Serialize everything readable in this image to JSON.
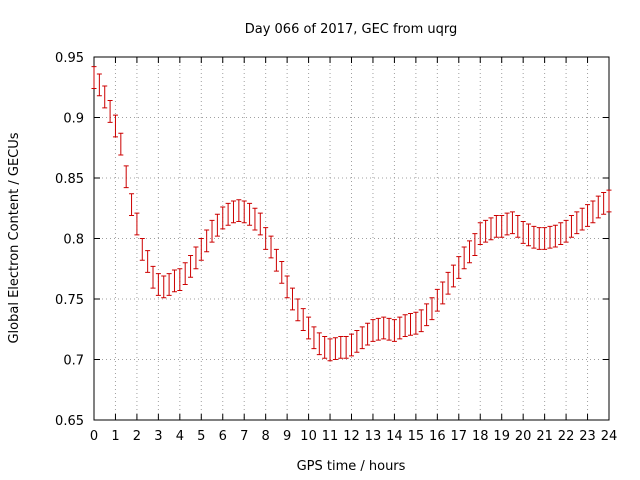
{
  "chart_data": {
    "type": "line",
    "title": "Day 066 of 2017, GEC from uqrg",
    "xlabel": "GPS time / hours",
    "ylabel": "Global Electron Content / GECUs",
    "xlim": [
      0,
      24
    ],
    "ylim": [
      0.65,
      0.95
    ],
    "xticks": [
      0,
      1,
      2,
      3,
      4,
      5,
      6,
      7,
      8,
      9,
      10,
      11,
      12,
      13,
      14,
      15,
      16,
      17,
      18,
      19,
      20,
      21,
      22,
      23,
      24
    ],
    "yticks": [
      0.65,
      0.7,
      0.75,
      0.8,
      0.85,
      0.9,
      0.95
    ],
    "grid": true,
    "legend": "none",
    "series": [
      {
        "color": "#cc0000",
        "style": "errorbars",
        "x": [
          0,
          0.25,
          0.5,
          0.75,
          1,
          1.25,
          1.5,
          1.75,
          2,
          2.25,
          2.5,
          2.75,
          3,
          3.25,
          3.5,
          3.75,
          4,
          4.25,
          4.5,
          4.75,
          5,
          5.25,
          5.5,
          5.75,
          6,
          6.25,
          6.5,
          6.75,
          7,
          7.25,
          7.5,
          7.75,
          8,
          8.25,
          8.5,
          8.75,
          9,
          9.25,
          9.5,
          9.75,
          10,
          10.25,
          10.5,
          10.75,
          11,
          11.25,
          11.5,
          11.75,
          12,
          12.25,
          12.5,
          12.75,
          13,
          13.25,
          13.5,
          13.75,
          14,
          14.25,
          14.5,
          14.75,
          15,
          15.25,
          15.5,
          15.75,
          16,
          16.25,
          16.5,
          16.75,
          17,
          17.25,
          17.5,
          17.75,
          18,
          18.25,
          18.5,
          18.75,
          19,
          19.25,
          19.5,
          19.75,
          20,
          20.25,
          20.5,
          20.75,
          21,
          21.25,
          21.5,
          21.75,
          22,
          22.25,
          22.5,
          22.75,
          23,
          23.25,
          23.5,
          23.75,
          24
        ],
        "y": [
          0.933,
          0.927,
          0.917,
          0.905,
          0.893,
          0.878,
          0.851,
          0.828,
          0.812,
          0.791,
          0.781,
          0.768,
          0.762,
          0.76,
          0.762,
          0.765,
          0.766,
          0.771,
          0.777,
          0.784,
          0.791,
          0.798,
          0.806,
          0.811,
          0.817,
          0.82,
          0.822,
          0.823,
          0.822,
          0.82,
          0.816,
          0.812,
          0.8,
          0.793,
          0.782,
          0.772,
          0.76,
          0.75,
          0.741,
          0.733,
          0.726,
          0.718,
          0.713,
          0.71,
          0.708,
          0.709,
          0.71,
          0.71,
          0.712,
          0.715,
          0.718,
          0.721,
          0.724,
          0.725,
          0.726,
          0.725,
          0.724,
          0.726,
          0.728,
          0.729,
          0.73,
          0.732,
          0.737,
          0.742,
          0.749,
          0.755,
          0.763,
          0.769,
          0.776,
          0.784,
          0.789,
          0.795,
          0.804,
          0.806,
          0.808,
          0.81,
          0.81,
          0.812,
          0.813,
          0.81,
          0.805,
          0.803,
          0.801,
          0.8,
          0.8,
          0.801,
          0.802,
          0.804,
          0.806,
          0.81,
          0.813,
          0.816,
          0.819,
          0.822,
          0.826,
          0.829,
          0.831
        ],
        "err": 0.009
      }
    ]
  }
}
